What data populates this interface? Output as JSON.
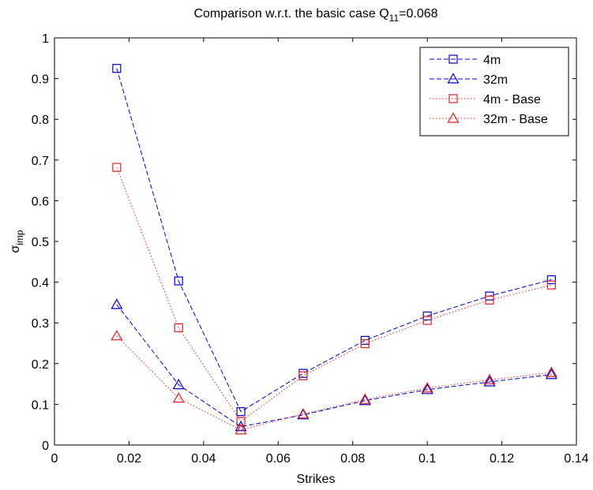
{
  "chart_data": {
    "type": "line",
    "title": "Comparison w.r.t. the basic case Q",
    "title_sub": "11",
    "title_tail": "=0.068",
    "xlabel": "Strikes",
    "ylabel_main": "σ",
    "ylabel_sub": "imp",
    "xlim": [
      0,
      0.14
    ],
    "ylim": [
      0,
      1
    ],
    "xticks": [
      "0",
      "0.02",
      "0.04",
      "0.06",
      "0.08",
      "0.1",
      "0.12",
      "0.14"
    ],
    "yticks": [
      "0",
      "0.1",
      "0.2",
      "0.3",
      "0.4",
      "0.5",
      "0.6",
      "0.7",
      "0.8",
      "0.9",
      "1"
    ],
    "grid": false,
    "legend_position": "top-right",
    "x": [
      0.0167,
      0.0333,
      0.05,
      0.0667,
      0.0833,
      0.1,
      0.1167,
      0.1333
    ],
    "series": [
      {
        "name": "4m",
        "color": "#0000cc",
        "marker": "square",
        "line": "dashed",
        "values": [
          0.925,
          0.403,
          0.082,
          0.176,
          0.257,
          0.317,
          0.366,
          0.406
        ]
      },
      {
        "name": "32m",
        "color": "#0000cc",
        "marker": "triangle",
        "line": "dashed",
        "values": [
          0.345,
          0.148,
          0.045,
          0.074,
          0.109,
          0.136,
          0.155,
          0.173
        ]
      },
      {
        "name": "4m - Base",
        "color": "#dd2222",
        "marker": "square",
        "line": "dotted",
        "values": [
          0.682,
          0.288,
          0.058,
          0.17,
          0.249,
          0.306,
          0.356,
          0.393
        ]
      },
      {
        "name": "32m - Base",
        "color": "#dd2222",
        "marker": "triangle",
        "line": "dotted",
        "values": [
          0.268,
          0.115,
          0.037,
          0.076,
          0.112,
          0.14,
          0.16,
          0.178
        ]
      }
    ]
  }
}
